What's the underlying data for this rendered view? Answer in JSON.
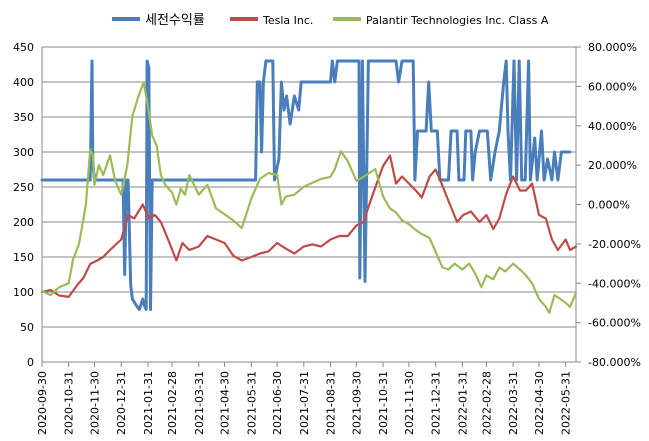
{
  "chart_data": {
    "type": "line",
    "legend_position": "top",
    "grid": true,
    "x_ticks": [
      "2020-09-30",
      "2020-10-31",
      "2020-11-30",
      "2020-12-31",
      "2021-01-31",
      "2021-02-28",
      "2021-03-31",
      "2021-04-30",
      "2021-05-31",
      "2021-06-30",
      "2021-07-31",
      "2021-08-31",
      "2021-09-30",
      "2021-10-31",
      "2021-11-30",
      "2021-12-31",
      "2022-01-31",
      "2022-02-28",
      "2022-03-31",
      "2022-04-30",
      "2022-05-31"
    ],
    "y_left": {
      "min": 0,
      "max": 450,
      "step": 50,
      "tick_labels": [
        "0",
        "50",
        "100",
        "150",
        "200",
        "250",
        "300",
        "350",
        "400",
        "450"
      ]
    },
    "y_right": {
      "min": -0.8,
      "max": 0.8,
      "step": 0.2,
      "tick_labels": [
        "-80.000%",
        "-60.000%",
        "-40.000%",
        "-20.000%",
        "0.000%",
        "20.000%",
        "40.000%",
        "60.000%",
        "80.000%"
      ]
    },
    "series": [
      {
        "name": "세전수익률",
        "axis": "left",
        "color": "#4a7ebb",
        "points": [
          [
            "2020-09-30",
            260
          ],
          [
            "2020-11-25",
            260
          ],
          [
            "2020-11-27",
            430
          ],
          [
            "2020-11-28",
            285
          ],
          [
            "2020-11-30",
            260
          ],
          [
            "2021-01-02",
            260
          ],
          [
            "2021-01-04",
            125
          ],
          [
            "2021-01-06",
            260
          ],
          [
            "2021-01-08",
            260
          ],
          [
            "2021-01-11",
            110
          ],
          [
            "2021-01-13",
            90
          ],
          [
            "2021-01-18",
            80
          ],
          [
            "2021-01-21",
            75
          ],
          [
            "2021-01-25",
            90
          ],
          [
            "2021-01-27",
            80
          ],
          [
            "2021-01-29",
            75
          ],
          [
            "2021-01-30",
            430
          ],
          [
            "2021-02-01",
            420
          ],
          [
            "2021-02-03",
            75
          ],
          [
            "2021-02-05",
            260
          ],
          [
            "2021-06-05",
            260
          ],
          [
            "2021-06-07",
            400
          ],
          [
            "2021-06-10",
            400
          ],
          [
            "2021-06-12",
            300
          ],
          [
            "2021-06-14",
            400
          ],
          [
            "2021-06-17",
            430
          ],
          [
            "2021-06-25",
            430
          ],
          [
            "2021-06-27",
            260
          ],
          [
            "2021-07-02",
            290
          ],
          [
            "2021-07-05",
            400
          ],
          [
            "2021-07-08",
            360
          ],
          [
            "2021-07-11",
            380
          ],
          [
            "2021-07-15",
            340
          ],
          [
            "2021-07-20",
            380
          ],
          [
            "2021-07-25",
            360
          ],
          [
            "2021-07-28",
            400
          ],
          [
            "2021-08-31",
            400
          ],
          [
            "2021-09-02",
            430
          ],
          [
            "2021-09-05",
            400
          ],
          [
            "2021-09-08",
            430
          ],
          [
            "2021-10-03",
            430
          ],
          [
            "2021-10-04",
            120
          ],
          [
            "2021-10-07",
            430
          ],
          [
            "2021-10-10",
            115
          ],
          [
            "2021-10-14",
            430
          ],
          [
            "2021-11-15",
            430
          ],
          [
            "2021-11-18",
            400
          ],
          [
            "2021-11-22",
            430
          ],
          [
            "2021-12-05",
            430
          ],
          [
            "2021-12-07",
            260
          ],
          [
            "2021-12-10",
            330
          ],
          [
            "2021-12-20",
            330
          ],
          [
            "2021-12-23",
            400
          ],
          [
            "2021-12-26",
            330
          ],
          [
            "2022-01-02",
            330
          ],
          [
            "2022-01-05",
            260
          ],
          [
            "2022-01-15",
            260
          ],
          [
            "2022-01-18",
            330
          ],
          [
            "2022-01-25",
            330
          ],
          [
            "2022-01-27",
            260
          ],
          [
            "2022-02-02",
            260
          ],
          [
            "2022-02-04",
            330
          ],
          [
            "2022-02-10",
            330
          ],
          [
            "2022-02-12",
            260
          ],
          [
            "2022-02-15",
            300
          ],
          [
            "2022-02-20",
            330
          ],
          [
            "2022-03-01",
            330
          ],
          [
            "2022-03-05",
            260
          ],
          [
            "2022-03-10",
            300
          ],
          [
            "2022-03-15",
            330
          ],
          [
            "2022-03-20",
            400
          ],
          [
            "2022-03-23",
            430
          ],
          [
            "2022-03-25",
            330
          ],
          [
            "2022-03-28",
            260
          ],
          [
            "2022-04-01",
            430
          ],
          [
            "2022-04-04",
            260
          ],
          [
            "2022-04-07",
            430
          ],
          [
            "2022-04-10",
            260
          ],
          [
            "2022-04-14",
            260
          ],
          [
            "2022-04-18",
            430
          ],
          [
            "2022-04-20",
            260
          ],
          [
            "2022-04-25",
            320
          ],
          [
            "2022-04-28",
            260
          ],
          [
            "2022-05-03",
            330
          ],
          [
            "2022-05-06",
            260
          ],
          [
            "2022-05-10",
            290
          ],
          [
            "2022-05-15",
            260
          ],
          [
            "2022-05-18",
            300
          ],
          [
            "2022-05-22",
            260
          ],
          [
            "2022-05-26",
            300
          ],
          [
            "2022-06-05",
            300
          ]
        ]
      },
      {
        "name": "Tesla Inc.",
        "axis": "left",
        "color": "#be4b48",
        "points": [
          [
            "2020-09-30",
            100
          ],
          [
            "2020-10-10",
            103
          ],
          [
            "2020-10-20",
            95
          ],
          [
            "2020-10-31",
            93
          ],
          [
            "2020-11-10",
            110
          ],
          [
            "2020-11-17",
            120
          ],
          [
            "2020-11-25",
            140
          ],
          [
            "2020-12-03",
            145
          ],
          [
            "2020-12-10",
            150
          ],
          [
            "2020-12-18",
            160
          ],
          [
            "2020-12-31",
            175
          ],
          [
            "2021-01-08",
            210
          ],
          [
            "2021-01-15",
            205
          ],
          [
            "2021-01-25",
            225
          ],
          [
            "2021-02-01",
            205
          ],
          [
            "2021-02-08",
            210
          ],
          [
            "2021-02-15",
            200
          ],
          [
            "2021-02-25",
            170
          ],
          [
            "2021-03-05",
            145
          ],
          [
            "2021-03-12",
            170
          ],
          [
            "2021-03-20",
            160
          ],
          [
            "2021-03-31",
            165
          ],
          [
            "2021-04-10",
            180
          ],
          [
            "2021-04-20",
            175
          ],
          [
            "2021-04-30",
            170
          ],
          [
            "2021-05-10",
            152
          ],
          [
            "2021-05-20",
            145
          ],
          [
            "2021-05-31",
            150
          ],
          [
            "2021-06-10",
            155
          ],
          [
            "2021-06-20",
            158
          ],
          [
            "2021-06-30",
            170
          ],
          [
            "2021-07-10",
            162
          ],
          [
            "2021-07-20",
            155
          ],
          [
            "2021-07-31",
            165
          ],
          [
            "2021-08-10",
            168
          ],
          [
            "2021-08-20",
            165
          ],
          [
            "2021-08-31",
            175
          ],
          [
            "2021-09-10",
            180
          ],
          [
            "2021-09-20",
            180
          ],
          [
            "2021-09-30",
            195
          ],
          [
            "2021-10-08",
            200
          ],
          [
            "2021-10-15",
            225
          ],
          [
            "2021-10-25",
            260
          ],
          [
            "2021-10-31",
            280
          ],
          [
            "2021-11-08",
            295
          ],
          [
            "2021-11-15",
            255
          ],
          [
            "2021-11-22",
            265
          ],
          [
            "2021-11-30",
            255
          ],
          [
            "2021-12-08",
            245
          ],
          [
            "2021-12-15",
            235
          ],
          [
            "2021-12-24",
            265
          ],
          [
            "2021-12-31",
            275
          ],
          [
            "2022-01-07",
            255
          ],
          [
            "2022-01-15",
            230
          ],
          [
            "2022-01-25",
            200
          ],
          [
            "2022-02-01",
            210
          ],
          [
            "2022-02-10",
            215
          ],
          [
            "2022-02-20",
            200
          ],
          [
            "2022-02-28",
            210
          ],
          [
            "2022-03-08",
            190
          ],
          [
            "2022-03-15",
            205
          ],
          [
            "2022-03-23",
            240
          ],
          [
            "2022-03-31",
            265
          ],
          [
            "2022-04-08",
            245
          ],
          [
            "2022-04-15",
            245
          ],
          [
            "2022-04-22",
            255
          ],
          [
            "2022-04-30",
            210
          ],
          [
            "2022-05-08",
            205
          ],
          [
            "2022-05-15",
            175
          ],
          [
            "2022-05-22",
            160
          ],
          [
            "2022-05-31",
            175
          ],
          [
            "2022-06-05",
            160
          ],
          [
            "2022-06-12",
            165
          ]
        ]
      },
      {
        "name": "Palantir Technologies Inc. Class A",
        "axis": "right",
        "color": "#9bbb59",
        "points": [
          [
            "2020-09-30",
            -0.44
          ],
          [
            "2020-10-10",
            -0.46
          ],
          [
            "2020-10-20",
            -0.42
          ],
          [
            "2020-10-31",
            -0.4
          ],
          [
            "2020-11-05",
            -0.28
          ],
          [
            "2020-11-12",
            -0.2
          ],
          [
            "2020-11-20",
            0.0
          ],
          [
            "2020-11-25",
            0.28
          ],
          [
            "2020-11-28",
            0.25
          ],
          [
            "2020-11-30",
            0.1
          ],
          [
            "2020-12-05",
            0.2
          ],
          [
            "2020-12-10",
            0.15
          ],
          [
            "2020-12-18",
            0.25
          ],
          [
            "2020-12-24",
            0.12
          ],
          [
            "2020-12-31",
            0.05
          ],
          [
            "2021-01-07",
            0.2
          ],
          [
            "2021-01-13",
            0.45
          ],
          [
            "2021-01-20",
            0.55
          ],
          [
            "2021-01-26",
            0.62
          ],
          [
            "2021-01-31",
            0.5
          ],
          [
            "2021-02-05",
            0.35
          ],
          [
            "2021-02-10",
            0.3
          ],
          [
            "2021-02-15",
            0.15
          ],
          [
            "2021-02-20",
            0.1
          ],
          [
            "2021-02-28",
            0.06
          ],
          [
            "2021-03-05",
            0.0
          ],
          [
            "2021-03-10",
            0.08
          ],
          [
            "2021-03-15",
            0.05
          ],
          [
            "2021-03-20",
            0.15
          ],
          [
            "2021-03-31",
            0.05
          ],
          [
            "2021-04-10",
            0.1
          ],
          [
            "2021-04-20",
            -0.02
          ],
          [
            "2021-04-30",
            -0.05
          ],
          [
            "2021-05-10",
            -0.08
          ],
          [
            "2021-05-20",
            -0.12
          ],
          [
            "2021-05-31",
            0.03
          ],
          [
            "2021-06-10",
            0.13
          ],
          [
            "2021-06-20",
            0.16
          ],
          [
            "2021-06-30",
            0.15
          ],
          [
            "2021-07-05",
            0.0
          ],
          [
            "2021-07-10",
            0.04
          ],
          [
            "2021-07-20",
            0.05
          ],
          [
            "2021-07-31",
            0.09
          ],
          [
            "2021-08-10",
            0.11
          ],
          [
            "2021-08-20",
            0.13
          ],
          [
            "2021-08-31",
            0.14
          ],
          [
            "2021-09-05",
            0.18
          ],
          [
            "2021-09-12",
            0.27
          ],
          [
            "2021-09-20",
            0.22
          ],
          [
            "2021-09-30",
            0.12
          ],
          [
            "2021-10-08",
            0.14
          ],
          [
            "2021-10-15",
            0.16
          ],
          [
            "2021-10-22",
            0.18
          ],
          [
            "2021-10-31",
            0.04
          ],
          [
            "2021-11-08",
            -0.02
          ],
          [
            "2021-11-15",
            -0.04
          ],
          [
            "2021-11-22",
            -0.08
          ],
          [
            "2021-11-30",
            -0.1
          ],
          [
            "2021-12-08",
            -0.13
          ],
          [
            "2021-12-15",
            -0.15
          ],
          [
            "2021-12-24",
            -0.17
          ],
          [
            "2021-12-31",
            -0.24
          ],
          [
            "2022-01-08",
            -0.32
          ],
          [
            "2022-01-15",
            -0.33
          ],
          [
            "2022-01-22",
            -0.3
          ],
          [
            "2022-01-31",
            -0.33
          ],
          [
            "2022-02-08",
            -0.3
          ],
          [
            "2022-02-15",
            -0.35
          ],
          [
            "2022-02-22",
            -0.42
          ],
          [
            "2022-02-28",
            -0.36
          ],
          [
            "2022-03-08",
            -0.38
          ],
          [
            "2022-03-15",
            -0.32
          ],
          [
            "2022-03-22",
            -0.34
          ],
          [
            "2022-03-31",
            -0.3
          ],
          [
            "2022-04-08",
            -0.33
          ],
          [
            "2022-04-15",
            -0.36
          ],
          [
            "2022-04-22",
            -0.4
          ],
          [
            "2022-04-30",
            -0.48
          ],
          [
            "2022-05-08",
            -0.52
          ],
          [
            "2022-05-12",
            -0.55
          ],
          [
            "2022-05-18",
            -0.46
          ],
          [
            "2022-05-25",
            -0.48
          ],
          [
            "2022-05-31",
            -0.5
          ],
          [
            "2022-06-05",
            -0.52
          ],
          [
            "2022-06-12",
            -0.45
          ]
        ]
      }
    ]
  }
}
